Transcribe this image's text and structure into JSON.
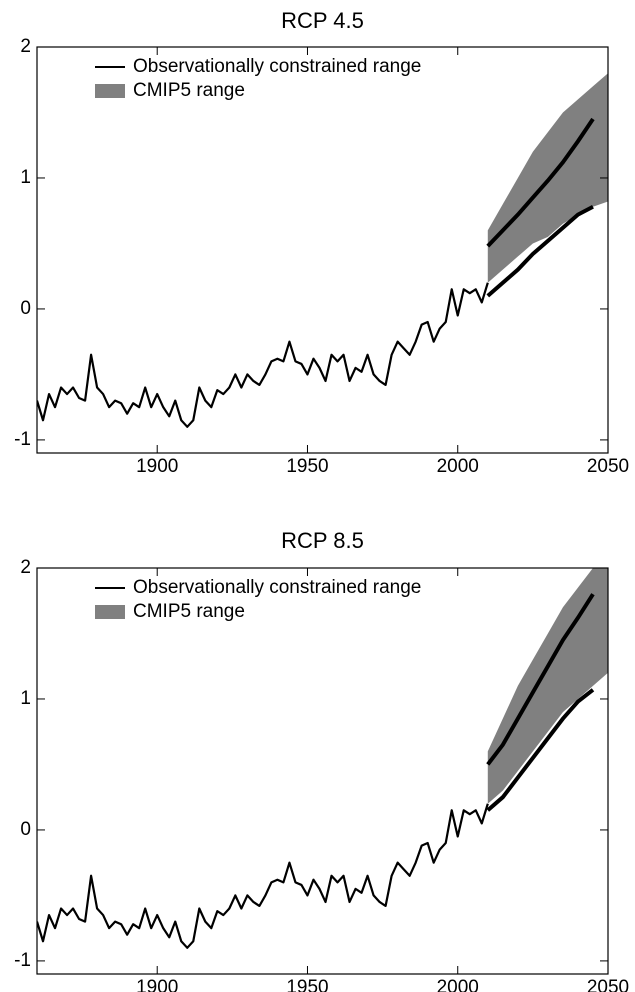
{
  "chart_data": [
    {
      "type": "line",
      "title": "RCP 4.5",
      "xlim": [
        1860,
        2050
      ],
      "ylim": [
        -1.1,
        2
      ],
      "xticks": [
        1900,
        1950,
        2000,
        2050
      ],
      "yticks": [
        -1,
        0,
        1,
        2
      ],
      "legend": "upper-left",
      "observed": {
        "color": "#000000",
        "x": [
          1860,
          1862,
          1864,
          1866,
          1868,
          1870,
          1872,
          1874,
          1876,
          1878,
          1880,
          1882,
          1884,
          1886,
          1888,
          1890,
          1892,
          1894,
          1896,
          1898,
          1900,
          1902,
          1904,
          1906,
          1908,
          1910,
          1912,
          1914,
          1916,
          1918,
          1920,
          1922,
          1924,
          1926,
          1928,
          1930,
          1932,
          1934,
          1936,
          1938,
          1940,
          1942,
          1944,
          1946,
          1948,
          1950,
          1952,
          1954,
          1956,
          1958,
          1960,
          1962,
          1964,
          1966,
          1968,
          1970,
          1972,
          1974,
          1976,
          1978,
          1980,
          1982,
          1984,
          1986,
          1988,
          1990,
          1992,
          1994,
          1996,
          1998,
          2000,
          2002,
          2004,
          2006,
          2008,
          2010
        ],
        "values": [
          -0.7,
          -0.85,
          -0.65,
          -0.75,
          -0.6,
          -0.65,
          -0.6,
          -0.68,
          -0.7,
          -0.35,
          -0.6,
          -0.65,
          -0.75,
          -0.7,
          -0.72,
          -0.8,
          -0.72,
          -0.75,
          -0.6,
          -0.75,
          -0.65,
          -0.75,
          -0.82,
          -0.7,
          -0.85,
          -0.9,
          -0.85,
          -0.6,
          -0.7,
          -0.75,
          -0.62,
          -0.65,
          -0.6,
          -0.5,
          -0.6,
          -0.5,
          -0.55,
          -0.58,
          -0.5,
          -0.4,
          -0.38,
          -0.4,
          -0.25,
          -0.4,
          -0.42,
          -0.5,
          -0.38,
          -0.45,
          -0.55,
          -0.35,
          -0.4,
          -0.35,
          -0.55,
          -0.45,
          -0.48,
          -0.35,
          -0.5,
          -0.55,
          -0.58,
          -0.35,
          -0.25,
          -0.3,
          -0.35,
          -0.25,
          -0.12,
          -0.1,
          -0.25,
          -0.15,
          -0.1,
          0.15,
          -0.05,
          0.15,
          0.12,
          0.15,
          0.05,
          0.2
        ]
      },
      "series": [
        {
          "name": "Observationally constrained range",
          "color": "#000000",
          "x": [
            2010,
            2015,
            2020,
            2025,
            2030,
            2035,
            2040,
            2045
          ],
          "upper": [
            0.48,
            0.6,
            0.72,
            0.85,
            0.98,
            1.12,
            1.28,
            1.45
          ],
          "lower": [
            0.1,
            0.2,
            0.3,
            0.42,
            0.52,
            0.62,
            0.72,
            0.78
          ]
        },
        {
          "name": "CMIP5 range",
          "color": "#808080",
          "x": [
            2010,
            2015,
            2020,
            2025,
            2030,
            2035,
            2040,
            2045,
            2050
          ],
          "upper": [
            0.6,
            0.8,
            1.0,
            1.2,
            1.35,
            1.5,
            1.6,
            1.7,
            1.8
          ],
          "lower": [
            0.2,
            0.3,
            0.4,
            0.5,
            0.55,
            0.65,
            0.72,
            0.78,
            0.82
          ]
        }
      ]
    },
    {
      "type": "line",
      "title": "RCP 8.5",
      "xlim": [
        1860,
        2050
      ],
      "ylim": [
        -1.1,
        2
      ],
      "xticks": [
        1900,
        1950,
        2000,
        2050
      ],
      "yticks": [
        -1,
        0,
        1,
        2
      ],
      "legend": "upper-left",
      "observed": {
        "color": "#000000",
        "x": [
          1860,
          1862,
          1864,
          1866,
          1868,
          1870,
          1872,
          1874,
          1876,
          1878,
          1880,
          1882,
          1884,
          1886,
          1888,
          1890,
          1892,
          1894,
          1896,
          1898,
          1900,
          1902,
          1904,
          1906,
          1908,
          1910,
          1912,
          1914,
          1916,
          1918,
          1920,
          1922,
          1924,
          1926,
          1928,
          1930,
          1932,
          1934,
          1936,
          1938,
          1940,
          1942,
          1944,
          1946,
          1948,
          1950,
          1952,
          1954,
          1956,
          1958,
          1960,
          1962,
          1964,
          1966,
          1968,
          1970,
          1972,
          1974,
          1976,
          1978,
          1980,
          1982,
          1984,
          1986,
          1988,
          1990,
          1992,
          1994,
          1996,
          1998,
          2000,
          2002,
          2004,
          2006,
          2008,
          2010
        ],
        "values": [
          -0.7,
          -0.85,
          -0.65,
          -0.75,
          -0.6,
          -0.65,
          -0.6,
          -0.68,
          -0.7,
          -0.35,
          -0.6,
          -0.65,
          -0.75,
          -0.7,
          -0.72,
          -0.8,
          -0.72,
          -0.75,
          -0.6,
          -0.75,
          -0.65,
          -0.75,
          -0.82,
          -0.7,
          -0.85,
          -0.9,
          -0.85,
          -0.6,
          -0.7,
          -0.75,
          -0.62,
          -0.65,
          -0.6,
          -0.5,
          -0.6,
          -0.5,
          -0.55,
          -0.58,
          -0.5,
          -0.4,
          -0.38,
          -0.4,
          -0.25,
          -0.4,
          -0.42,
          -0.5,
          -0.38,
          -0.45,
          -0.55,
          -0.35,
          -0.4,
          -0.35,
          -0.55,
          -0.45,
          -0.48,
          -0.35,
          -0.5,
          -0.55,
          -0.58,
          -0.35,
          -0.25,
          -0.3,
          -0.35,
          -0.25,
          -0.12,
          -0.1,
          -0.25,
          -0.15,
          -0.1,
          0.15,
          -0.05,
          0.15,
          0.12,
          0.15,
          0.05,
          0.2
        ]
      },
      "series": [
        {
          "name": "Observationally constrained range",
          "color": "#000000",
          "x": [
            2010,
            2015,
            2020,
            2025,
            2030,
            2035,
            2040,
            2045
          ],
          "upper": [
            0.5,
            0.65,
            0.85,
            1.05,
            1.25,
            1.45,
            1.62,
            1.8
          ],
          "lower": [
            0.15,
            0.25,
            0.4,
            0.55,
            0.7,
            0.85,
            0.98,
            1.07
          ]
        },
        {
          "name": "CMIP5 range",
          "color": "#808080",
          "x": [
            2010,
            2015,
            2020,
            2025,
            2030,
            2035,
            2040,
            2045,
            2050
          ],
          "upper": [
            0.6,
            0.85,
            1.1,
            1.3,
            1.5,
            1.7,
            1.85,
            2.0,
            2.15
          ],
          "lower": [
            0.2,
            0.3,
            0.45,
            0.6,
            0.75,
            0.9,
            1.0,
            1.1,
            1.2
          ]
        }
      ]
    }
  ]
}
